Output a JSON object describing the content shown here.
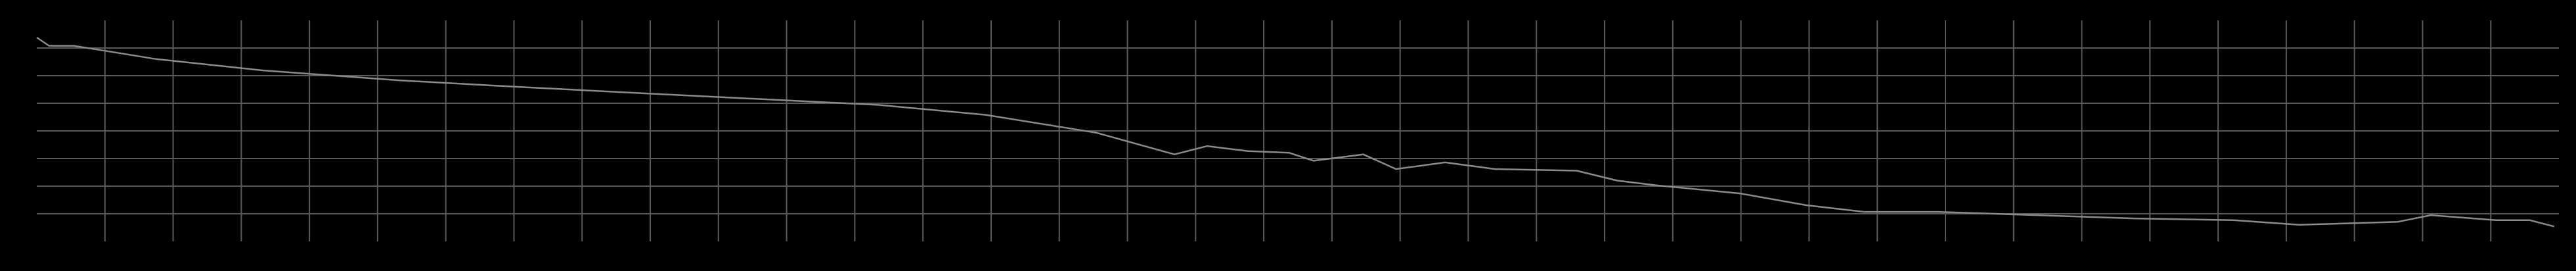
{
  "chart_data": {
    "type": "line",
    "x": [
      -1.0,
      -0.82,
      -0.46,
      0,
      0.75,
      2.31,
      4.31,
      6.0,
      8.39,
      11.35,
      12.92,
      14.55,
      15.69,
      16.17,
      16.77,
      17.37,
      17.73,
      18.46,
      18.94,
      19.66,
      20.39,
      21.59,
      22.19,
      22.8,
      24.0,
      24.96,
      25.81,
      26.89,
      28.34,
      29.78,
      31.23,
      32.19,
      33.64,
      34.12,
      35.08,
      35.57,
      35.93
    ],
    "values": [
      7.38,
      7.08,
      7.08,
      6.9,
      6.6,
      6.19,
      5.83,
      5.6,
      5.3,
      4.94,
      4.58,
      3.93,
      3.15,
      3.45,
      3.27,
      3.21,
      2.92,
      3.15,
      2.62,
      2.86,
      2.62,
      2.56,
      2.2,
      2.02,
      1.73,
      1.31,
      1.07,
      1.07,
      0.95,
      0.83,
      0.77,
      0.6,
      0.71,
      0.95,
      0.77,
      0.77,
      0.54
    ],
    "color": "#8a8a8a",
    "xlim": [
      -1,
      36
    ],
    "xticks": [
      0,
      1,
      2,
      3,
      4,
      5,
      6,
      7,
      8,
      9,
      10,
      11,
      12,
      13,
      14,
      15,
      16,
      17,
      18,
      19,
      20,
      21,
      22,
      23,
      24,
      25,
      26,
      27,
      28,
      29,
      30,
      31,
      32,
      33,
      34,
      35
    ],
    "ylim": [
      0,
      8
    ],
    "yticks": [
      1,
      2,
      3,
      4,
      5,
      6,
      7
    ],
    "grid": true,
    "grid_color": "#5a5a5a"
  }
}
